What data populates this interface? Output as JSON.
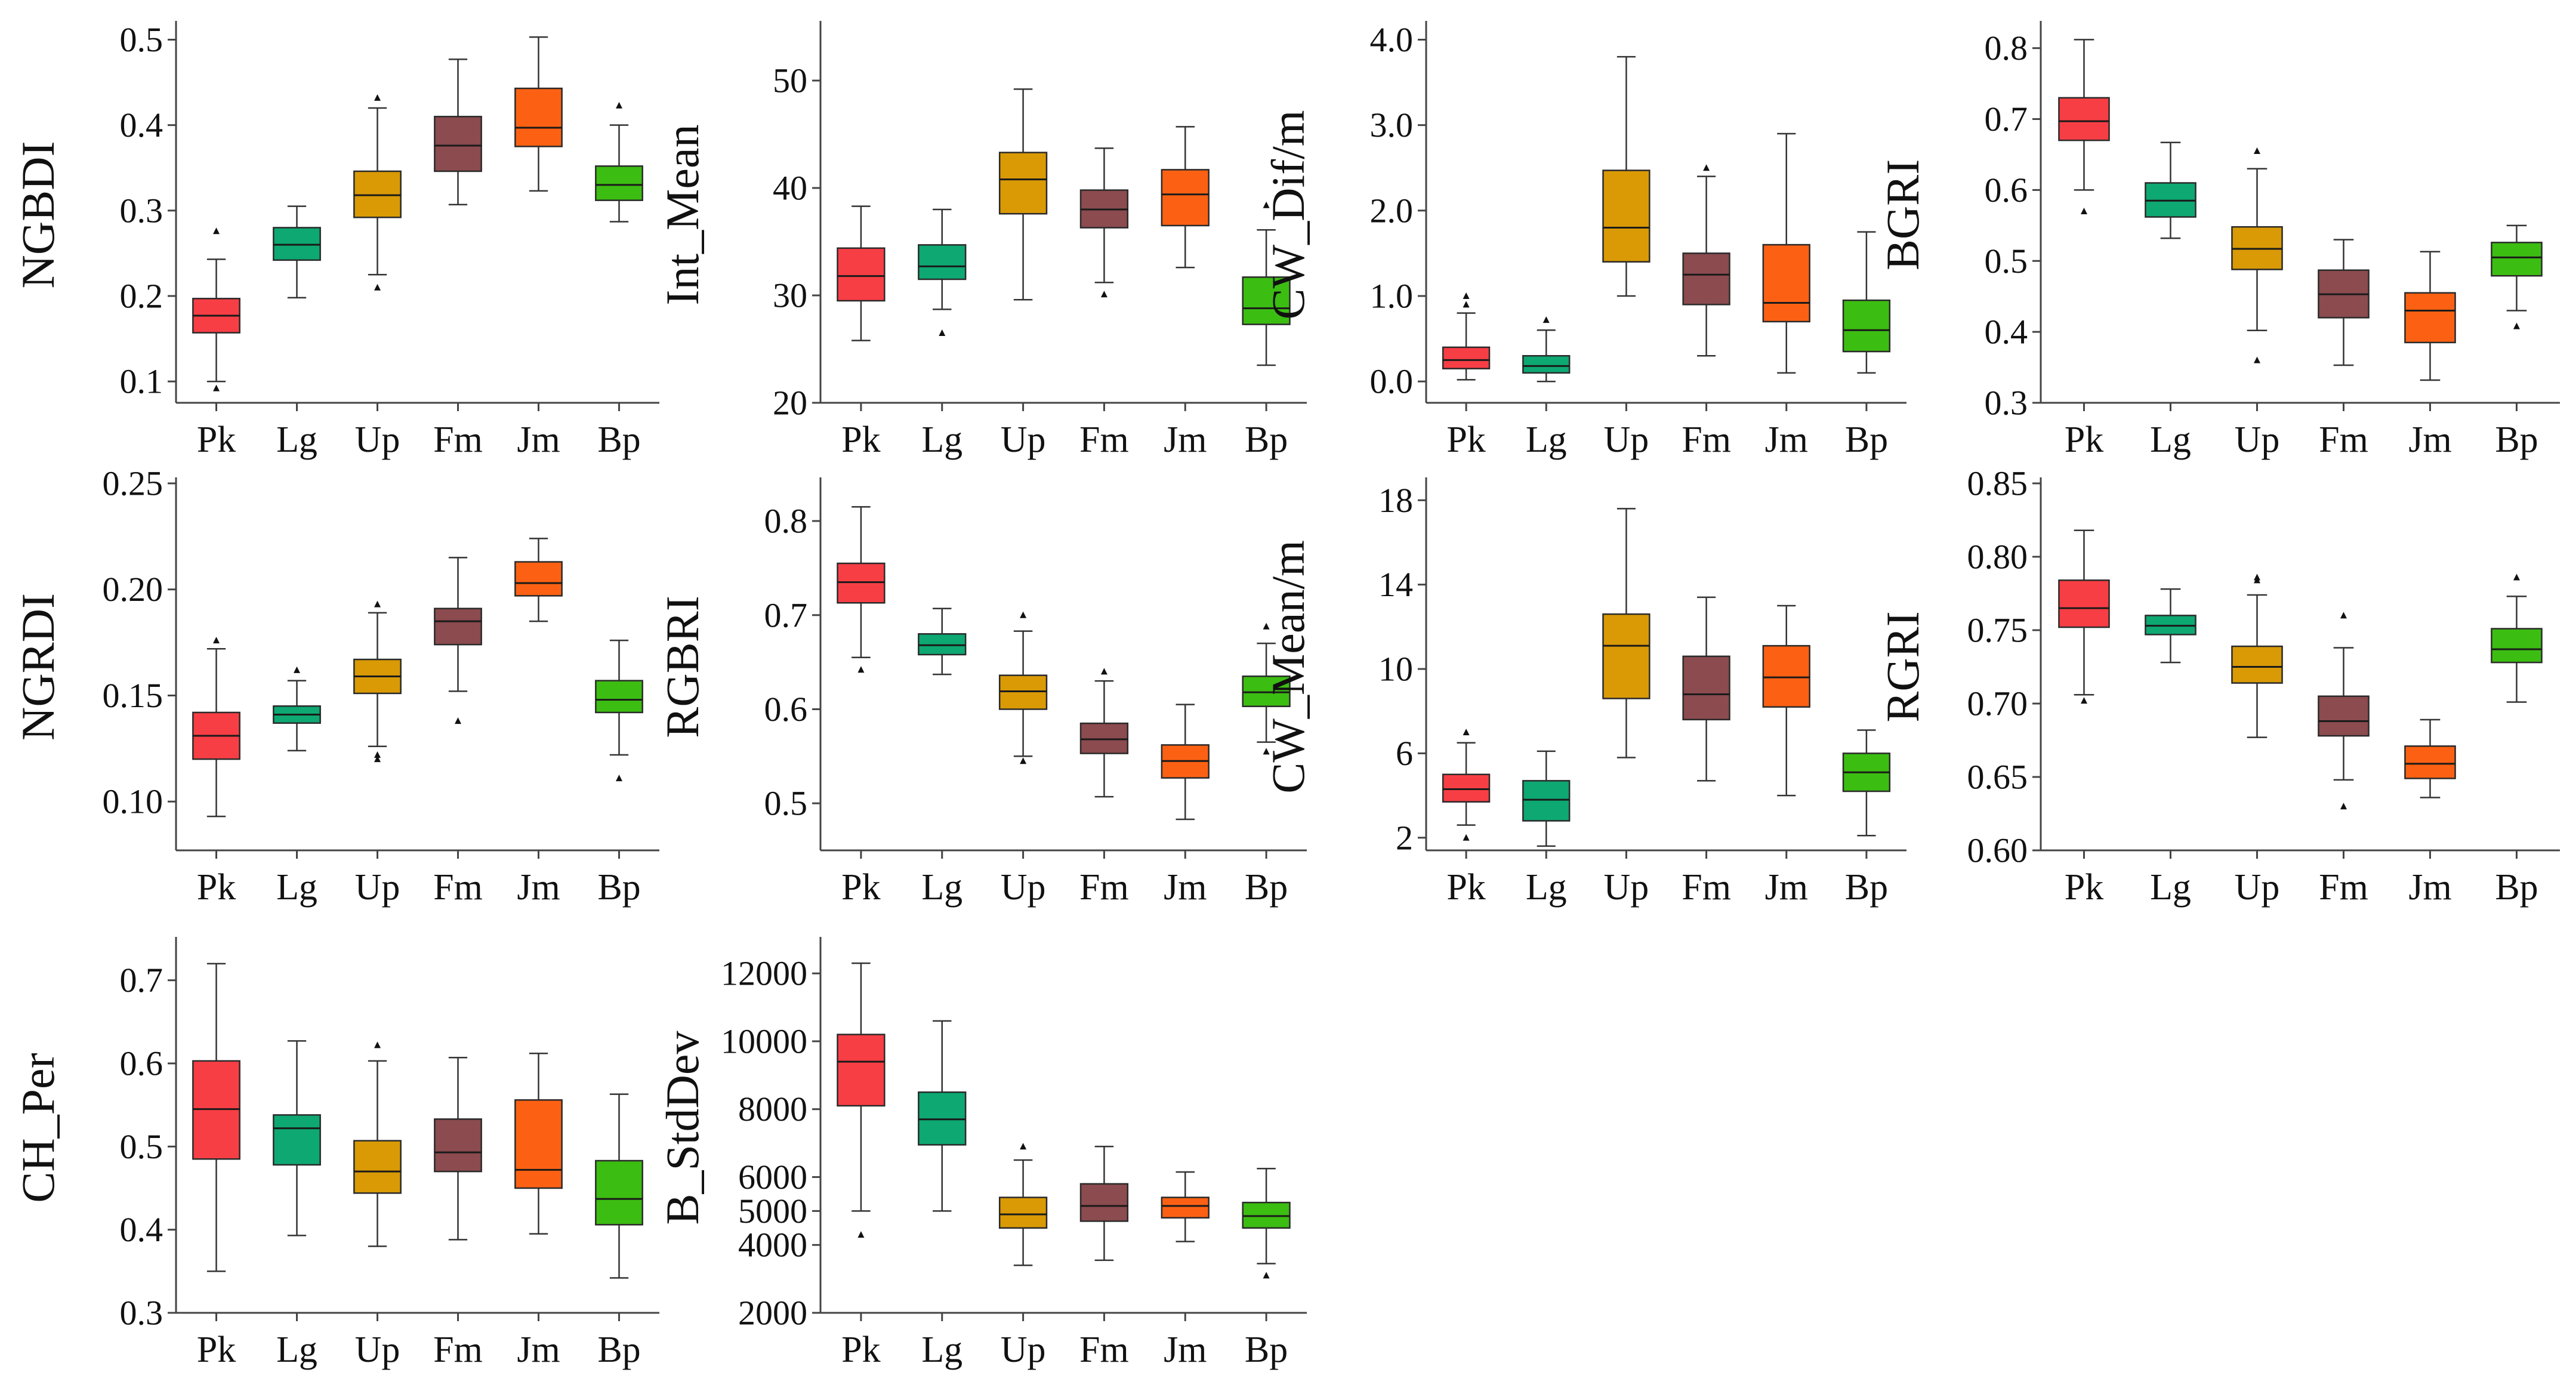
{
  "colors": {
    "Pk": "#f73e45",
    "Lg": "#0ea873",
    "Up": "#d99a06",
    "Fm": "#8b4b4f",
    "Jm": "#fc6113",
    "Bp": "#3cbd12"
  },
  "chart_data": [
    {
      "type": "box",
      "ylabel": "NGBDI",
      "categories": [
        "Pk",
        "Lg",
        "Up",
        "Fm",
        "Jm",
        "Bp"
      ],
      "ylim": [
        0.075,
        0.515
      ],
      "yticks": [
        0.1,
        0.2,
        0.3,
        0.4,
        0.5
      ],
      "ytick_labels": [
        "0.1",
        "0.2",
        "0.3",
        "0.4",
        "0.5"
      ],
      "boxes": [
        {
          "min": 0.1,
          "q1": 0.157,
          "median": 0.177,
          "q3": 0.197,
          "max": 0.243,
          "outliers": [
            0.276,
            0.092
          ]
        },
        {
          "min": 0.198,
          "q1": 0.242,
          "median": 0.26,
          "q3": 0.28,
          "max": 0.305,
          "outliers": []
        },
        {
          "min": 0.225,
          "q1": 0.292,
          "median": 0.318,
          "q3": 0.346,
          "max": 0.42,
          "outliers": [
            0.432,
            0.21
          ]
        },
        {
          "min": 0.307,
          "q1": 0.346,
          "median": 0.376,
          "q3": 0.41,
          "max": 0.477,
          "outliers": []
        },
        {
          "min": 0.323,
          "q1": 0.375,
          "median": 0.397,
          "q3": 0.443,
          "max": 0.503,
          "outliers": []
        },
        {
          "min": 0.287,
          "q1": 0.312,
          "median": 0.33,
          "q3": 0.352,
          "max": 0.4,
          "outliers": [
            0.423
          ]
        }
      ]
    },
    {
      "type": "box",
      "ylabel": "Int_Mean",
      "categories": [
        "Pk",
        "Lg",
        "Up",
        "Fm",
        "Jm",
        "Bp"
      ],
      "ylim": [
        20,
        55
      ],
      "yticks": [
        20,
        30,
        40,
        50
      ],
      "ytick_labels": [
        "20",
        "30",
        "40",
        "50"
      ],
      "boxes": [
        {
          "min": 25.8,
          "q1": 29.5,
          "median": 31.8,
          "q3": 34.4,
          "max": 38.3,
          "outliers": []
        },
        {
          "min": 28.7,
          "q1": 31.5,
          "median": 32.7,
          "q3": 34.7,
          "max": 38.0,
          "outliers": [
            26.5
          ]
        },
        {
          "min": 29.6,
          "q1": 37.6,
          "median": 40.8,
          "q3": 43.3,
          "max": 49.2,
          "outliers": []
        },
        {
          "min": 31.2,
          "q1": 36.3,
          "median": 38.0,
          "q3": 39.8,
          "max": 43.7,
          "outliers": [
            30.1
          ]
        },
        {
          "min": 32.6,
          "q1": 36.5,
          "median": 39.4,
          "q3": 41.7,
          "max": 45.7,
          "outliers": []
        },
        {
          "min": 23.5,
          "q1": 27.3,
          "median": 28.8,
          "q3": 31.7,
          "max": 36.1,
          "outliers": [
            38.4
          ]
        }
      ]
    },
    {
      "type": "box",
      "ylabel": "CW_Dif/m",
      "categories": [
        "Pk",
        "Lg",
        "Up",
        "Fm",
        "Jm",
        "Bp"
      ],
      "ylim": [
        -0.25,
        4.15
      ],
      "yticks": [
        0.0,
        1.0,
        2.0,
        3.0,
        4.0
      ],
      "ytick_labels": [
        "0.0",
        "1.0",
        "2.0",
        "3.0",
        "4.0"
      ],
      "boxes": [
        {
          "min": 0.02,
          "q1": 0.15,
          "median": 0.25,
          "q3": 0.4,
          "max": 0.8,
          "outliers": [
            0.9,
            1.0
          ]
        },
        {
          "min": 0.0,
          "q1": 0.1,
          "median": 0.18,
          "q3": 0.3,
          "max": 0.6,
          "outliers": [
            0.72
          ]
        },
        {
          "min": 1.0,
          "q1": 1.4,
          "median": 1.8,
          "q3": 2.47,
          "max": 3.8,
          "outliers": []
        },
        {
          "min": 0.3,
          "q1": 0.9,
          "median": 1.25,
          "q3": 1.5,
          "max": 2.4,
          "outliers": [
            2.5
          ]
        },
        {
          "min": 0.1,
          "q1": 0.7,
          "median": 0.92,
          "q3": 1.6,
          "max": 2.9,
          "outliers": []
        },
        {
          "min": 0.1,
          "q1": 0.35,
          "median": 0.6,
          "q3": 0.95,
          "max": 1.75,
          "outliers": []
        }
      ]
    },
    {
      "type": "box",
      "ylabel": "BGRI",
      "categories": [
        "Pk",
        "Lg",
        "Up",
        "Fm",
        "Jm",
        "Bp"
      ],
      "ylim": [
        0.3,
        0.83
      ],
      "yticks": [
        0.3,
        0.4,
        0.5,
        0.6,
        0.7,
        0.8
      ],
      "ytick_labels": [
        "0.3",
        "0.4",
        "0.5",
        "0.6",
        "0.7",
        "0.8"
      ],
      "boxes": [
        {
          "min": 0.6,
          "q1": 0.67,
          "median": 0.697,
          "q3": 0.73,
          "max": 0.812,
          "outliers": [
            0.57
          ]
        },
        {
          "min": 0.532,
          "q1": 0.562,
          "median": 0.585,
          "q3": 0.61,
          "max": 0.667,
          "outliers": []
        },
        {
          "min": 0.402,
          "q1": 0.488,
          "median": 0.517,
          "q3": 0.548,
          "max": 0.63,
          "outliers": [
            0.655,
            0.36
          ]
        },
        {
          "min": 0.353,
          "q1": 0.42,
          "median": 0.453,
          "q3": 0.487,
          "max": 0.53,
          "outliers": []
        },
        {
          "min": 0.332,
          "q1": 0.385,
          "median": 0.43,
          "q3": 0.455,
          "max": 0.513,
          "outliers": []
        },
        {
          "min": 0.43,
          "q1": 0.479,
          "median": 0.505,
          "q3": 0.526,
          "max": 0.55,
          "outliers": [
            0.408
          ]
        }
      ]
    },
    {
      "type": "box",
      "ylabel": "NGRDI",
      "categories": [
        "Pk",
        "Lg",
        "Up",
        "Fm",
        "Jm",
        "Bp"
      ],
      "ylim": [
        0.077,
        0.25
      ],
      "yticks": [
        0.1,
        0.15,
        0.2,
        0.25
      ],
      "ytick_labels": [
        "0.10",
        "0.15",
        "0.20",
        "0.25"
      ],
      "boxes": [
        {
          "min": 0.093,
          "q1": 0.12,
          "median": 0.131,
          "q3": 0.142,
          "max": 0.172,
          "outliers": [
            0.176
          ]
        },
        {
          "min": 0.124,
          "q1": 0.137,
          "median": 0.141,
          "q3": 0.145,
          "max": 0.157,
          "outliers": [
            0.162
          ]
        },
        {
          "min": 0.126,
          "q1": 0.151,
          "median": 0.159,
          "q3": 0.167,
          "max": 0.189,
          "outliers": [
            0.193,
            0.122,
            0.12
          ]
        },
        {
          "min": 0.152,
          "q1": 0.174,
          "median": 0.185,
          "q3": 0.191,
          "max": 0.215,
          "outliers": [
            0.138
          ]
        },
        {
          "min": 0.185,
          "q1": 0.197,
          "median": 0.203,
          "q3": 0.213,
          "max": 0.224,
          "outliers": []
        },
        {
          "min": 0.122,
          "q1": 0.142,
          "median": 0.148,
          "q3": 0.157,
          "max": 0.176,
          "outliers": [
            0.111
          ]
        }
      ]
    },
    {
      "type": "box",
      "ylabel": "RGBRI",
      "categories": [
        "Pk",
        "Lg",
        "Up",
        "Fm",
        "Jm",
        "Bp"
      ],
      "ylim": [
        0.45,
        0.84
      ],
      "yticks": [
        0.5,
        0.6,
        0.7,
        0.8
      ],
      "ytick_labels": [
        "0.5",
        "0.6",
        "0.7",
        "0.8"
      ],
      "boxes": [
        {
          "min": 0.655,
          "q1": 0.713,
          "median": 0.735,
          "q3": 0.755,
          "max": 0.815,
          "outliers": [
            0.642
          ]
        },
        {
          "min": 0.637,
          "q1": 0.658,
          "median": 0.668,
          "q3": 0.68,
          "max": 0.707,
          "outliers": []
        },
        {
          "min": 0.55,
          "q1": 0.6,
          "median": 0.619,
          "q3": 0.636,
          "max": 0.683,
          "outliers": [
            0.7,
            0.545
          ]
        },
        {
          "min": 0.507,
          "q1": 0.553,
          "median": 0.568,
          "q3": 0.585,
          "max": 0.63,
          "outliers": [
            0.64
          ]
        },
        {
          "min": 0.483,
          "q1": 0.527,
          "median": 0.545,
          "q3": 0.562,
          "max": 0.605,
          "outliers": []
        },
        {
          "min": 0.565,
          "q1": 0.603,
          "median": 0.618,
          "q3": 0.635,
          "max": 0.67,
          "outliers": [
            0.688,
            0.555
          ]
        }
      ]
    },
    {
      "type": "box",
      "ylabel": "CW_Mean/m",
      "categories": [
        "Pk",
        "Lg",
        "Up",
        "Fm",
        "Jm",
        "Bp"
      ],
      "ylim": [
        1.4,
        18.8
      ],
      "yticks": [
        2,
        6,
        10,
        14,
        18
      ],
      "ytick_labels": [
        "2",
        "6",
        "10",
        "14",
        "18"
      ],
      "boxes": [
        {
          "min": 2.6,
          "q1": 3.7,
          "median": 4.3,
          "q3": 5.0,
          "max": 6.5,
          "outliers": [
            7.0,
            2.0
          ]
        },
        {
          "min": 1.6,
          "q1": 2.8,
          "median": 3.8,
          "q3": 4.7,
          "max": 6.1,
          "outliers": []
        },
        {
          "min": 5.8,
          "q1": 8.6,
          "median": 11.1,
          "q3": 12.6,
          "max": 17.6,
          "outliers": []
        },
        {
          "min": 4.7,
          "q1": 7.6,
          "median": 8.8,
          "q3": 10.6,
          "max": 13.4,
          "outliers": []
        },
        {
          "min": 4.0,
          "q1": 8.2,
          "median": 9.6,
          "q3": 11.1,
          "max": 13.0,
          "outliers": []
        },
        {
          "min": 2.1,
          "q1": 4.2,
          "median": 5.1,
          "q3": 6.0,
          "max": 7.1,
          "outliers": []
        }
      ]
    },
    {
      "type": "box",
      "ylabel": "RGRI",
      "categories": [
        "Pk",
        "Lg",
        "Up",
        "Fm",
        "Jm",
        "Bp"
      ],
      "ylim": [
        0.6,
        0.85
      ],
      "yticks": [
        0.6,
        0.65,
        0.7,
        0.75,
        0.8,
        0.85
      ],
      "ytick_labels": [
        "0.60",
        "0.65",
        "0.70",
        "0.75",
        "0.80",
        "0.85"
      ],
      "boxes": [
        {
          "min": 0.706,
          "q1": 0.752,
          "median": 0.765,
          "q3": 0.784,
          "max": 0.818,
          "outliers": [
            0.702
          ]
        },
        {
          "min": 0.728,
          "q1": 0.747,
          "median": 0.753,
          "q3": 0.76,
          "max": 0.778,
          "outliers": []
        },
        {
          "min": 0.677,
          "q1": 0.714,
          "median": 0.725,
          "q3": 0.739,
          "max": 0.774,
          "outliers": [
            0.784,
            0.786
          ]
        },
        {
          "min": 0.648,
          "q1": 0.678,
          "median": 0.688,
          "q3": 0.705,
          "max": 0.738,
          "outliers": [
            0.76,
            0.63
          ]
        },
        {
          "min": 0.636,
          "q1": 0.649,
          "median": 0.659,
          "q3": 0.671,
          "max": 0.689,
          "outliers": []
        },
        {
          "min": 0.701,
          "q1": 0.728,
          "median": 0.737,
          "q3": 0.751,
          "max": 0.773,
          "outliers": [
            0.786
          ]
        }
      ]
    },
    {
      "type": "box",
      "ylabel": "CH_Per",
      "categories": [
        "Pk",
        "Lg",
        "Up",
        "Fm",
        "Jm",
        "Bp"
      ],
      "ylim": [
        0.3,
        0.745
      ],
      "yticks": [
        0.3,
        0.4,
        0.5,
        0.6,
        0.7
      ],
      "ytick_labels": [
        "0.3",
        "0.4",
        "0.5",
        "0.6",
        "0.7"
      ],
      "boxes": [
        {
          "min": 0.35,
          "q1": 0.485,
          "median": 0.545,
          "q3": 0.603,
          "max": 0.72,
          "outliers": []
        },
        {
          "min": 0.393,
          "q1": 0.478,
          "median": 0.522,
          "q3": 0.538,
          "max": 0.627,
          "outliers": []
        },
        {
          "min": 0.38,
          "q1": 0.444,
          "median": 0.47,
          "q3": 0.507,
          "max": 0.603,
          "outliers": [
            0.622
          ]
        },
        {
          "min": 0.388,
          "q1": 0.47,
          "median": 0.493,
          "q3": 0.533,
          "max": 0.607,
          "outliers": []
        },
        {
          "min": 0.395,
          "q1": 0.45,
          "median": 0.472,
          "q3": 0.556,
          "max": 0.612,
          "outliers": []
        },
        {
          "min": 0.342,
          "q1": 0.406,
          "median": 0.437,
          "q3": 0.483,
          "max": 0.563,
          "outliers": []
        }
      ]
    },
    {
      "type": "box",
      "ylabel": "B_StdDev",
      "categories": [
        "Pk",
        "Lg",
        "Up",
        "Fm",
        "Jm",
        "Bp"
      ],
      "ylim": [
        2000,
        12900
      ],
      "yticks": [
        2000,
        4000,
        5000,
        6000,
        8000,
        10000,
        12000
      ],
      "ytick_labels": [
        "2000",
        "4000",
        "5000",
        "6000",
        "8000",
        "10000",
        "12000"
      ],
      "boxes": [
        {
          "min": 5000,
          "q1": 8100,
          "median": 9400,
          "q3": 10200,
          "max": 12300,
          "outliers": [
            4300
          ]
        },
        {
          "min": 5000,
          "q1": 6950,
          "median": 7700,
          "q3": 8500,
          "max": 10600,
          "outliers": []
        },
        {
          "min": 3400,
          "q1": 4500,
          "median": 4900,
          "q3": 5400,
          "max": 6500,
          "outliers": [
            6900
          ]
        },
        {
          "min": 3550,
          "q1": 4700,
          "median": 5150,
          "q3": 5800,
          "max": 6900,
          "outliers": []
        },
        {
          "min": 4100,
          "q1": 4800,
          "median": 5150,
          "q3": 5400,
          "max": 6150,
          "outliers": []
        },
        {
          "min": 3450,
          "q1": 4500,
          "median": 4850,
          "q3": 5250,
          "max": 6250,
          "outliers": [
            3100
          ]
        }
      ]
    }
  ]
}
